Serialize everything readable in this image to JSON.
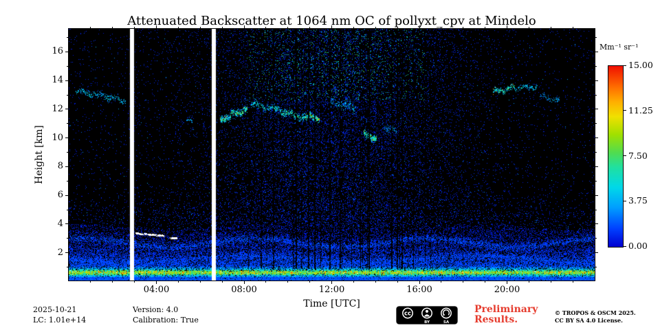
{
  "chart_data": {
    "type": "heatmap",
    "title": "Attenuated Backscatter at 1064 nm OC of pollyxt_cpv at Mindelo",
    "xlabel": "Time [UTC]",
    "ylabel": "Height [km]",
    "x_range_hours": [
      0,
      24
    ],
    "x_ticks": [
      "04:00",
      "08:00",
      "12:00",
      "16:00",
      "20:00"
    ],
    "x_tick_hours": [
      4,
      8,
      12,
      16,
      20
    ],
    "y_ticks": [
      2,
      4,
      6,
      8,
      10,
      12,
      14,
      16
    ],
    "y_range_km": [
      0.07,
      17.6
    ],
    "grid": false,
    "colorbar": {
      "label": "Mm⁻¹ sr⁻¹",
      "range": [
        0,
        15
      ],
      "ticks": [
        "15.00",
        "11.25",
        "7.50",
        "3.75",
        "0.00"
      ],
      "colormap": [
        {
          "pos": 0.0,
          "color": "#0000d0"
        },
        {
          "pos": 0.1,
          "color": "#0040ff"
        },
        {
          "pos": 0.22,
          "color": "#00a0ff"
        },
        {
          "pos": 0.33,
          "color": "#00d8e8"
        },
        {
          "pos": 0.44,
          "color": "#20e0a0"
        },
        {
          "pos": 0.52,
          "color": "#50dc50"
        },
        {
          "pos": 0.62,
          "color": "#a0e000"
        },
        {
          "pos": 0.72,
          "color": "#f0e000"
        },
        {
          "pos": 0.8,
          "color": "#ffb000"
        },
        {
          "pos": 0.88,
          "color": "#ff7000"
        },
        {
          "pos": 1.0,
          "color": "#f01000"
        }
      ]
    },
    "features": {
      "description": "Lidar quicklook: dense aerosol boundary layer below ~3.8 km with a strong bright surface layer at 0.3-1.0 km; sparse blue noise speckle aloft that intensifies during daytime (~07-18 UTC) with green/yellow high-altitude noise near local noon; scattered mid/high cloud streaks at 10-14 km; thin white cloud dashes at BL top ~3.0-3.4 km between 03-05 UTC; two full-height white instrument data gaps; dark attenuated columns 10-17 UTC.",
      "data_gap_hours": [
        [
          2.78,
          2.97
        ],
        [
          6.52,
          6.7
        ]
      ],
      "boundary_layer_top_km": 3.8,
      "surface_layer_km": [
        0.3,
        1.0
      ],
      "daytime_noise_peak_utc": 12.2,
      "cloud_streaks": [
        {
          "t0": 0.3,
          "t1": 1.3,
          "h0": 13.3,
          "h1": 13.0,
          "w": 0.22,
          "i": 0.5
        },
        {
          "t0": 1.3,
          "t1": 2.6,
          "h0": 13.0,
          "h1": 12.6,
          "w": 0.25,
          "i": 0.45
        },
        {
          "t0": 5.35,
          "t1": 5.65,
          "h0": 11.2,
          "h1": 11.15,
          "w": 0.15,
          "i": 0.5
        },
        {
          "t0": 6.9,
          "t1": 7.4,
          "h0": 11.1,
          "h1": 11.6,
          "w": 0.3,
          "i": 0.8
        },
        {
          "t0": 7.4,
          "t1": 8.15,
          "h0": 11.6,
          "h1": 12.0,
          "w": 0.28,
          "i": 0.8
        },
        {
          "t0": 8.3,
          "t1": 9.4,
          "h0": 12.4,
          "h1": 12.0,
          "w": 0.3,
          "i": 0.55
        },
        {
          "t0": 9.4,
          "t1": 10.7,
          "h0": 12.0,
          "h1": 11.4,
          "w": 0.3,
          "i": 0.7
        },
        {
          "t0": 10.7,
          "t1": 11.45,
          "h0": 11.5,
          "h1": 11.4,
          "w": 0.25,
          "i": 0.9
        },
        {
          "t0": 11.9,
          "t1": 13.1,
          "h0": 12.5,
          "h1": 12.1,
          "w": 0.4,
          "i": 0.45
        },
        {
          "t0": 13.45,
          "t1": 14.05,
          "h0": 10.3,
          "h1": 9.95,
          "w": 0.28,
          "i": 0.9
        },
        {
          "t0": 14.4,
          "t1": 15.0,
          "h0": 10.7,
          "h1": 10.5,
          "w": 0.3,
          "i": 0.35
        },
        {
          "t0": 19.35,
          "t1": 20.35,
          "h0": 13.2,
          "h1": 13.5,
          "w": 0.22,
          "i": 0.75
        },
        {
          "t0": 20.35,
          "t1": 21.4,
          "h0": 13.5,
          "h1": 13.55,
          "w": 0.2,
          "i": 0.5
        },
        {
          "t0": 21.5,
          "t1": 22.4,
          "h0": 12.9,
          "h1": 12.6,
          "w": 0.2,
          "i": 0.35
        }
      ],
      "cloud_base_dashes": [
        {
          "t0": 3.05,
          "t1": 4.35,
          "h0": 3.35,
          "h1": 3.18
        },
        {
          "t0": 4.6,
          "t1": 4.95,
          "h0": 3.02,
          "h1": 3.0
        }
      ],
      "attenuated_columns": [
        {
          "count": 24,
          "t0": 9.8,
          "t1": 16.4,
          "strength": 0.8
        },
        {
          "count": 4,
          "t0": 8.1,
          "t1": 9.6,
          "strength": 0.65
        },
        {
          "count": 3,
          "t0": 16.5,
          "t1": 17.4,
          "strength": 0.6
        }
      ]
    }
  },
  "footer": {
    "date": "2025-10-21",
    "lc": "LC: 1.01e+14",
    "version": "Version: 4.0",
    "calibration": "Calibration: True",
    "preliminary": [
      "Preliminary",
      "Results."
    ],
    "copyright": [
      "© TROPOS & OSCM 2025.",
      "CC BY SA 4.0 License."
    ],
    "badge": {
      "cc": "cc",
      "by": "BY",
      "sa": "SA"
    }
  },
  "colors": {
    "preliminary_red": "#e63c2e",
    "plot_background": "#000000",
    "text": "#000000"
  }
}
